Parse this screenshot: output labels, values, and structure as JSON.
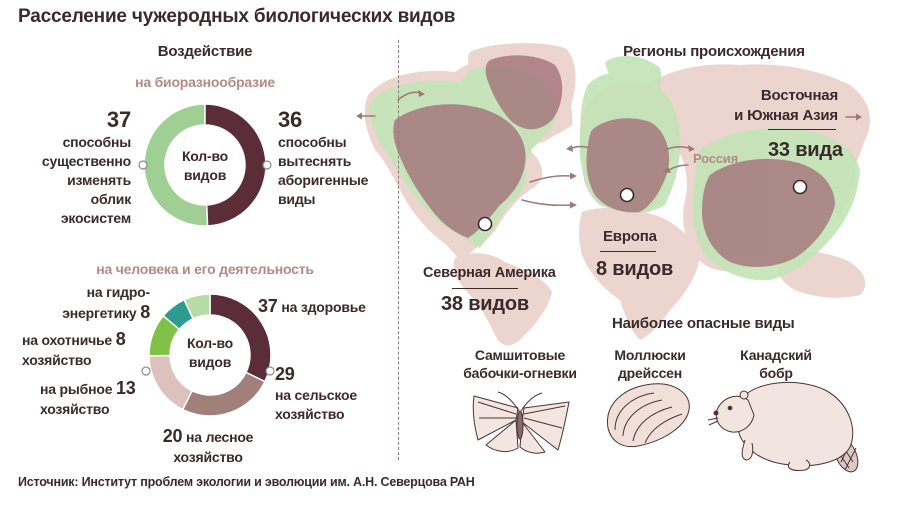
{
  "title": "Расселение чужеродных биологических видов",
  "impact": {
    "heading": "Воздействие"
  },
  "chart_data": [
    {
      "type": "pie",
      "donut": true,
      "title": "на биоразнообразие",
      "center_label": "Кол-во\nвидов",
      "categories": [
        "способны\nсущественно\nизменять\nоблик\nэкосистем",
        "способны\nвытеснять\nаборигенные\nвиды"
      ],
      "values": [
        37,
        36
      ],
      "colors": [
        "#9fcf92",
        "#5a2d39"
      ]
    },
    {
      "type": "pie",
      "donut": true,
      "title": "на человека и его деятельность",
      "center_label": "Кол-во\nвидов",
      "categories": [
        "на здоровье",
        "на сельское\nхозяйство",
        "на лесное\nхозяйство",
        "на рыбное\nхозяйство",
        "на охотничье\nхозяйство",
        "на гидро-\nэнергетику"
      ],
      "values": [
        37,
        29,
        20,
        13,
        8,
        8
      ],
      "colors": [
        "#5a2d39",
        "#a17f7b",
        "#dcc1bc",
        "#80c248",
        "#2e9b8f",
        "#b6dca6"
      ]
    }
  ],
  "origins": {
    "heading": "Регионы происхождения",
    "russia_label": "Россия",
    "regions": [
      {
        "name": "Северная Америка",
        "count": "38 видов"
      },
      {
        "name": "Европа",
        "count": "8 видов"
      },
      {
        "name": "Восточная\nи Южная Азия",
        "count": "33 вида"
      }
    ]
  },
  "dangerous": {
    "heading": "Наиболее опасные виды",
    "species": [
      {
        "name": "Самшитовые\nбабочки-огневки",
        "icon": "moth-illustration"
      },
      {
        "name": "Моллюски\nдрейссен",
        "icon": "mussel-illustration"
      },
      {
        "name": "Канадский\nбобр",
        "icon": "beaver-illustration"
      }
    ]
  },
  "source": "Источник: Институт проблем экологии и эволюции им. А.Н. Северцова РАН",
  "colors": {
    "text": "#3b2a2c",
    "accent": "#b38a85",
    "map_land": "#ecd5cf",
    "map_invaded": "#c3e4b6",
    "map_origin": "#a6797e",
    "arrow": "#9c7a77",
    "illustration_fill": "#f3e6e1",
    "illustration_stroke": "#4a3434"
  }
}
